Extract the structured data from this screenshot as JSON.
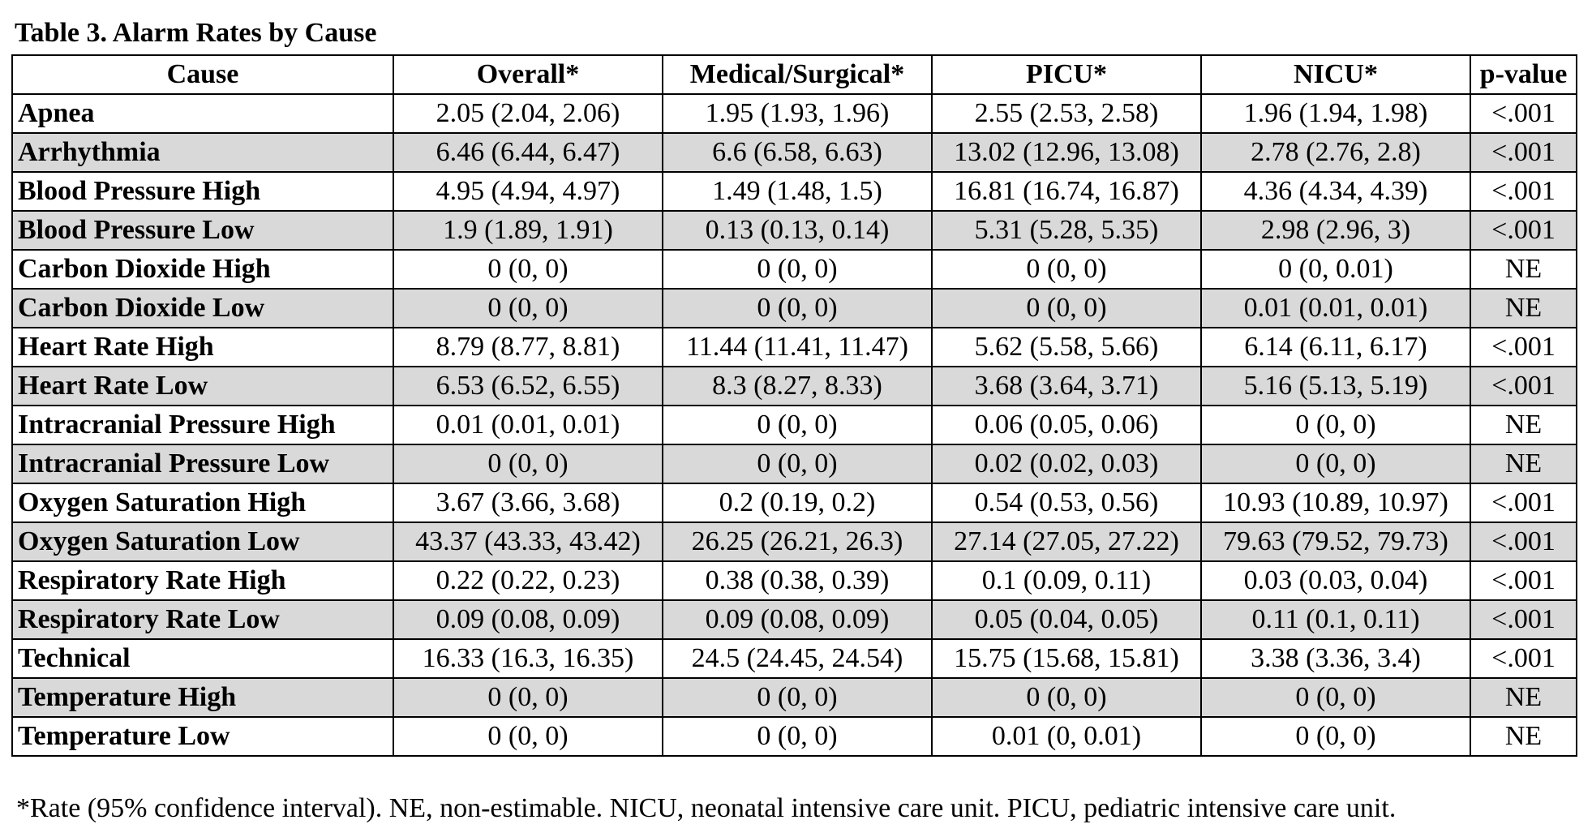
{
  "caption": "Table 3. Alarm Rates by Cause",
  "headers": [
    "Cause",
    "Overall*",
    "Medical/Surgical*",
    "PICU*",
    "NICU*",
    "p-value"
  ],
  "rows": [
    {
      "cause": "Apnea",
      "overall": "2.05 (2.04, 2.06)",
      "medsurg": "1.95 (1.93, 1.96)",
      "picu": "2.55 (2.53, 2.58)",
      "nicu": "1.96 (1.94, 1.98)",
      "p": "<.001"
    },
    {
      "cause": "Arrhythmia",
      "overall": "6.46 (6.44, 6.47)",
      "medsurg": "6.6 (6.58, 6.63)",
      "picu": "13.02 (12.96, 13.08)",
      "nicu": "2.78 (2.76, 2.8)",
      "p": "<.001"
    },
    {
      "cause": "Blood Pressure High",
      "overall": "4.95 (4.94, 4.97)",
      "medsurg": "1.49 (1.48, 1.5)",
      "picu": "16.81 (16.74, 16.87)",
      "nicu": "4.36 (4.34, 4.39)",
      "p": "<.001"
    },
    {
      "cause": "Blood Pressure Low",
      "overall": "1.9 (1.89, 1.91)",
      "medsurg": "0.13 (0.13, 0.14)",
      "picu": "5.31 (5.28, 5.35)",
      "nicu": "2.98 (2.96, 3)",
      "p": "<.001"
    },
    {
      "cause": "Carbon Dioxide High",
      "overall": "0 (0, 0)",
      "medsurg": "0 (0, 0)",
      "picu": "0 (0, 0)",
      "nicu": "0 (0, 0.01)",
      "p": "NE"
    },
    {
      "cause": "Carbon Dioxide Low",
      "overall": "0 (0, 0)",
      "medsurg": "0 (0, 0)",
      "picu": "0 (0, 0)",
      "nicu": "0.01 (0.01, 0.01)",
      "p": "NE"
    },
    {
      "cause": "Heart Rate High",
      "overall": "8.79 (8.77, 8.81)",
      "medsurg": "11.44 (11.41, 11.47)",
      "picu": "5.62 (5.58, 5.66)",
      "nicu": "6.14 (6.11, 6.17)",
      "p": "<.001"
    },
    {
      "cause": "Heart Rate Low",
      "overall": "6.53 (6.52, 6.55)",
      "medsurg": "8.3 (8.27, 8.33)",
      "picu": "3.68 (3.64, 3.71)",
      "nicu": "5.16 (5.13, 5.19)",
      "p": "<.001"
    },
    {
      "cause": "Intracranial Pressure High",
      "overall": "0.01 (0.01, 0.01)",
      "medsurg": "0 (0, 0)",
      "picu": "0.06 (0.05, 0.06)",
      "nicu": "0 (0, 0)",
      "p": "NE"
    },
    {
      "cause": "Intracranial Pressure Low",
      "overall": "0 (0, 0)",
      "medsurg": "0 (0, 0)",
      "picu": "0.02 (0.02, 0.03)",
      "nicu": "0 (0, 0)",
      "p": "NE"
    },
    {
      "cause": "Oxygen Saturation High",
      "overall": "3.67 (3.66, 3.68)",
      "medsurg": "0.2 (0.19, 0.2)",
      "picu": "0.54 (0.53, 0.56)",
      "nicu": "10.93 (10.89, 10.97)",
      "p": "<.001"
    },
    {
      "cause": "Oxygen Saturation Low",
      "overall": "43.37 (43.33, 43.42)",
      "medsurg": "26.25 (26.21, 26.3)",
      "picu": "27.14 (27.05, 27.22)",
      "nicu": "79.63 (79.52, 79.73)",
      "p": "<.001"
    },
    {
      "cause": "Respiratory Rate High",
      "overall": "0.22 (0.22, 0.23)",
      "medsurg": "0.38 (0.38, 0.39)",
      "picu": "0.1 (0.09, 0.11)",
      "nicu": "0.03 (0.03, 0.04)",
      "p": "<.001"
    },
    {
      "cause": "Respiratory Rate Low",
      "overall": "0.09 (0.08, 0.09)",
      "medsurg": "0.09 (0.08, 0.09)",
      "picu": "0.05 (0.04, 0.05)",
      "nicu": "0.11 (0.1, 0.11)",
      "p": "<.001"
    },
    {
      "cause": "Technical",
      "overall": "16.33 (16.3, 16.35)",
      "medsurg": "24.5 (24.45, 24.54)",
      "picu": "15.75 (15.68, 15.81)",
      "nicu": "3.38 (3.36, 3.4)",
      "p": "<.001"
    },
    {
      "cause": "Temperature High",
      "overall": "0 (0, 0)",
      "medsurg": "0 (0, 0)",
      "picu": "0 (0, 0)",
      "nicu": "0 (0, 0)",
      "p": "NE"
    },
    {
      "cause": "Temperature Low",
      "overall": "0 (0, 0)",
      "medsurg": "0 (0, 0)",
      "picu": "0.01 (0, 0.01)",
      "nicu": "0 (0, 0)",
      "p": "NE"
    }
  ],
  "footnote": "*Rate (95% confidence interval). NE, non-estimable. NICU, neonatal intensive care unit. PICU, pediatric intensive care unit.",
  "colors": {
    "shaded_row": "#d9d9d9",
    "border": "#000000",
    "background": "#ffffff"
  }
}
